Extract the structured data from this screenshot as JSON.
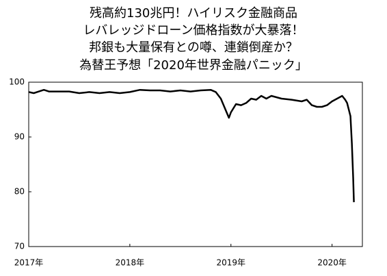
{
  "chart_data": {
    "type": "line",
    "title": [
      "残高約130兆円！ハイリスク金融商品",
      "レバレッジドローン価格指数が大暴落！",
      "邦銀も大量保有との噂、連鎖倒産か？",
      "為替王予想「2020年世界金融パニック」"
    ],
    "x": [
      2017.0,
      2017.05,
      2017.1,
      2017.15,
      2017.2,
      2017.3,
      2017.4,
      2017.5,
      2017.6,
      2017.7,
      2017.8,
      2017.9,
      2018.0,
      2018.1,
      2018.2,
      2018.3,
      2018.4,
      2018.5,
      2018.6,
      2018.7,
      2018.8,
      2018.85,
      2018.9,
      2018.98,
      2019.0,
      2019.05,
      2019.1,
      2019.15,
      2019.2,
      2019.25,
      2019.3,
      2019.35,
      2019.4,
      2019.5,
      2019.6,
      2019.7,
      2019.75,
      2019.8,
      2019.85,
      2019.9,
      2019.95,
      2020.0,
      2020.05,
      2020.1,
      2020.13,
      2020.149,
      2020.182,
      2020.196,
      2020.209,
      2020.216
    ],
    "series": [
      {
        "color": "#000000",
        "values": [
          98.2,
          98.0,
          98.3,
          98.6,
          98.3,
          98.3,
          98.3,
          98.0,
          98.2,
          98.0,
          98.2,
          98.0,
          98.2,
          98.6,
          98.5,
          98.5,
          98.3,
          98.5,
          98.3,
          98.5,
          98.6,
          98.2,
          97.0,
          93.5,
          94.5,
          96.0,
          95.8,
          96.2,
          97.0,
          96.8,
          97.5,
          97.0,
          97.5,
          97.0,
          96.8,
          96.5,
          96.8,
          95.8,
          95.5,
          95.5,
          95.8,
          96.5,
          97.0,
          97.5,
          96.8,
          96.2,
          93.8,
          88.8,
          82.5,
          78.1
        ]
      }
    ],
    "xlim": [
      2017,
      2020.3
    ],
    "xticks": [
      {
        "value": 2017,
        "label": "2017年"
      },
      {
        "value": 2018,
        "label": "2018年"
      },
      {
        "value": 2019,
        "label": "2019年"
      },
      {
        "value": 2020,
        "label": "2020年"
      }
    ],
    "ylim": [
      70,
      100
    ],
    "yticks": [
      70,
      80,
      90,
      100
    ],
    "grid": false
  }
}
